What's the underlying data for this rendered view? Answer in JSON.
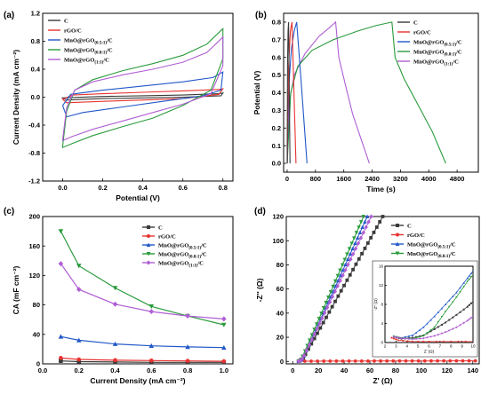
{
  "colors": {
    "C": "#3a3a3a",
    "rGO": "#e8322f",
    "MnO051": "#2158c8",
    "MnO081": "#2a9b3c",
    "MnO11": "#b05ed4"
  },
  "legend": [
    {
      "key": "C",
      "base": "C",
      "sub": "",
      "tail": ""
    },
    {
      "key": "rGO",
      "base": "rGO/C",
      "sub": "",
      "tail": ""
    },
    {
      "key": "MnO051",
      "base": "MnO@rGO",
      "sub": "(0.5:1)",
      "tail": "/C"
    },
    {
      "key": "MnO081",
      "base": "MnO@rGO",
      "sub": "(0.8:1)",
      "tail": "/C"
    },
    {
      "key": "MnO11",
      "base": "MnO@rGO",
      "sub": "(1:1)",
      "tail": "/C"
    }
  ],
  "chart_data": [
    {
      "id": "a",
      "panel_label": "(a)",
      "type": "line",
      "xlabel": "Potential (V)",
      "ylabel": "Current Density (mA cm⁻²)",
      "xlim": [
        -0.1,
        0.85
      ],
      "ylim": [
        -1.2,
        1.2
      ],
      "xticks": [
        "0.0",
        "0.2",
        "0.4",
        "0.6",
        "0.8"
      ],
      "yticks": [
        "-1.2",
        "-0.8",
        "-0.4",
        "0.0",
        "0.4",
        "0.8",
        "1.2"
      ],
      "legend_position": "top-left",
      "series": [
        {
          "key": "C",
          "loops": [
            [
              0,
              -0.01
            ],
            [
              0.2,
              0.01
            ],
            [
              0.4,
              0.02
            ],
            [
              0.6,
              0.03
            ],
            [
              0.78,
              0.05
            ],
            [
              0.8,
              0.06
            ],
            [
              0.79,
              0.02
            ],
            [
              0.6,
              0.0
            ],
            [
              0.4,
              -0.01
            ],
            [
              0.2,
              -0.02
            ],
            [
              0.02,
              -0.04
            ],
            [
              0,
              -0.01
            ]
          ]
        },
        {
          "key": "rGO",
          "loops": [
            [
              0,
              -0.03
            ],
            [
              0.05,
              0.03
            ],
            [
              0.2,
              0.05
            ],
            [
              0.4,
              0.07
            ],
            [
              0.6,
              0.09
            ],
            [
              0.78,
              0.11
            ],
            [
              0.8,
              0.12
            ],
            [
              0.78,
              0.04
            ],
            [
              0.6,
              -0.02
            ],
            [
              0.4,
              -0.04
            ],
            [
              0.2,
              -0.06
            ],
            [
              0.02,
              -0.08
            ],
            [
              0,
              -0.03
            ]
          ]
        },
        {
          "key": "MnO051",
          "loops": [
            [
              0,
              -0.12
            ],
            [
              0.04,
              0.04
            ],
            [
              0.2,
              0.1
            ],
            [
              0.4,
              0.16
            ],
            [
              0.6,
              0.22
            ],
            [
              0.75,
              0.28
            ],
            [
              0.8,
              0.36
            ],
            [
              0.79,
              0.1
            ],
            [
              0.7,
              0.02
            ],
            [
              0.5,
              -0.06
            ],
            [
              0.3,
              -0.14
            ],
            [
              0.1,
              -0.22
            ],
            [
              0.02,
              -0.28
            ],
            [
              0,
              -0.12
            ]
          ]
        },
        {
          "key": "MnO081",
          "loops": [
            [
              0,
              -0.7
            ],
            [
              0.02,
              -0.2
            ],
            [
              0.06,
              0.1
            ],
            [
              0.15,
              0.25
            ],
            [
              0.3,
              0.38
            ],
            [
              0.45,
              0.48
            ],
            [
              0.6,
              0.6
            ],
            [
              0.72,
              0.76
            ],
            [
              0.8,
              0.98
            ],
            [
              0.8,
              0.55
            ],
            [
              0.74,
              0.1
            ],
            [
              0.6,
              -0.12
            ],
            [
              0.45,
              -0.3
            ],
            [
              0.3,
              -0.42
            ],
            [
              0.15,
              -0.55
            ],
            [
              0.05,
              -0.66
            ],
            [
              0,
              -0.72
            ]
          ]
        },
        {
          "key": "MnO11",
          "loops": [
            [
              0,
              -0.6
            ],
            [
              0.02,
              -0.15
            ],
            [
              0.06,
              0.1
            ],
            [
              0.15,
              0.22
            ],
            [
              0.3,
              0.32
            ],
            [
              0.45,
              0.4
            ],
            [
              0.6,
              0.5
            ],
            [
              0.72,
              0.64
            ],
            [
              0.8,
              0.86
            ],
            [
              0.8,
              0.45
            ],
            [
              0.74,
              0.05
            ],
            [
              0.6,
              -0.1
            ],
            [
              0.45,
              -0.22
            ],
            [
              0.3,
              -0.34
            ],
            [
              0.15,
              -0.46
            ],
            [
              0.05,
              -0.56
            ],
            [
              0,
              -0.62
            ]
          ]
        }
      ]
    },
    {
      "id": "b",
      "panel_label": "(b)",
      "type": "line",
      "xlabel": "Time (s)",
      "ylabel": "Potential (V)",
      "xlim": [
        -100,
        5400
      ],
      "ylim": [
        -0.05,
        0.85
      ],
      "xticks": [
        "0",
        "800",
        "1600",
        "2400",
        "3200",
        "4000",
        "4800"
      ],
      "yticks": [
        "0.0",
        "0.1",
        "0.2",
        "0.3",
        "0.4",
        "0.5",
        "0.6",
        "0.7",
        "0.8"
      ],
      "legend_position": "top-right",
      "series": [
        {
          "key": "C",
          "points": [
            [
              0,
              0
            ],
            [
              10,
              0.55
            ],
            [
              25,
              0.75
            ],
            [
              40,
              0.8
            ],
            [
              80,
              0.0
            ]
          ]
        },
        {
          "key": "rGO",
          "points": [
            [
              0,
              0
            ],
            [
              40,
              0.55
            ],
            [
              90,
              0.75
            ],
            [
              135,
              0.8
            ],
            [
              250,
              0.0
            ]
          ]
        },
        {
          "key": "MnO051",
          "points": [
            [
              0,
              0
            ],
            [
              50,
              0.45
            ],
            [
              120,
              0.65
            ],
            [
              200,
              0.75
            ],
            [
              270,
              0.8
            ],
            [
              400,
              0.45
            ],
            [
              560,
              0.0
            ]
          ]
        },
        {
          "key": "MnO081",
          "points": [
            [
              0,
              0
            ],
            [
              100,
              0.4
            ],
            [
              300,
              0.55
            ],
            [
              700,
              0.64
            ],
            [
              1300,
              0.7
            ],
            [
              2000,
              0.75
            ],
            [
              2500,
              0.78
            ],
            [
              2960,
              0.8
            ],
            [
              3050,
              0.6
            ],
            [
              3300,
              0.48
            ],
            [
              3700,
              0.33
            ],
            [
              4100,
              0.18
            ],
            [
              4480,
              0.0
            ]
          ]
        },
        {
          "key": "MnO11",
          "points": [
            [
              0,
              0
            ],
            [
              60,
              0.35
            ],
            [
              200,
              0.5
            ],
            [
              500,
              0.62
            ],
            [
              900,
              0.72
            ],
            [
              1200,
              0.77
            ],
            [
              1370,
              0.8
            ],
            [
              1460,
              0.6
            ],
            [
              1650,
              0.44
            ],
            [
              1850,
              0.28
            ],
            [
              2100,
              0.13
            ],
            [
              2320,
              0.0
            ]
          ]
        }
      ]
    },
    {
      "id": "c",
      "panel_label": "(c)",
      "type": "line",
      "xlabel": "Current Density (mA cm⁻²)",
      "ylabel": "CA (mF cm⁻²)",
      "xlim": [
        0.0,
        1.05
      ],
      "ylim": [
        0,
        200
      ],
      "xticks": [
        "0.0",
        "0.2",
        "0.4",
        "0.6",
        "0.8",
        "1.0"
      ],
      "yticks": [
        "0",
        "40",
        "80",
        "120",
        "160",
        "200"
      ],
      "legend_position": "top-right",
      "x": [
        0.1,
        0.2,
        0.4,
        0.6,
        0.8,
        1.0
      ],
      "series": [
        {
          "key": "C",
          "marker": "square",
          "values": [
            4,
            3,
            2.5,
            2,
            2,
            2
          ]
        },
        {
          "key": "rGO",
          "marker": "circle",
          "values": [
            8,
            6,
            5,
            4.5,
            4,
            3.5
          ]
        },
        {
          "key": "MnO051",
          "marker": "triangle-up",
          "values": [
            37,
            32,
            27,
            24.5,
            23,
            22
          ]
        },
        {
          "key": "MnO081",
          "marker": "triangle-down",
          "values": [
            180,
            133,
            103,
            78,
            65,
            53
          ]
        },
        {
          "key": "MnO11",
          "marker": "diamond",
          "values": [
            136,
            101,
            81,
            71,
            65,
            61
          ]
        }
      ]
    },
    {
      "id": "d",
      "panel_label": "(d)",
      "type": "scatter",
      "xlabel": "Z' (Ω)",
      "ylabel": "-Z'' (Ω)",
      "xlim": [
        -5,
        145
      ],
      "ylim": [
        -2,
        120
      ],
      "xticks": [
        "0",
        "20",
        "40",
        "60",
        "80",
        "100",
        "120",
        "140"
      ],
      "yticks": [
        "0",
        "20",
        "40",
        "60",
        "80",
        "100",
        "120"
      ],
      "legend_position": "top-right",
      "series": [
        {
          "key": "C",
          "marker": "square",
          "start": [
            4.5,
            0.3
          ],
          "end": [
            70,
            120
          ],
          "knee": [
            9,
            4
          ]
        },
        {
          "key": "rGO",
          "marker": "circle",
          "start": [
            4.5,
            0.2
          ],
          "end": [
            142,
            0.5
          ],
          "knee": null
        },
        {
          "key": "MnO051",
          "marker": "triangle-up",
          "start": [
            4.5,
            0.3
          ],
          "end": [
            58,
            120
          ],
          "knee": [
            8,
            3
          ]
        },
        {
          "key": "MnO081",
          "marker": "triangle-down",
          "start": [
            4.5,
            0.3
          ],
          "end": [
            55,
            120
          ],
          "knee": [
            7,
            2.5
          ]
        },
        {
          "key": "MnO11",
          "marker": "diamond",
          "start": [
            4.5,
            0.3
          ],
          "end": [
            61,
            120
          ],
          "knee": [
            8,
            3
          ]
        }
      ],
      "inset": {
        "xlabel": "Z' (Ω)",
        "ylabel": "-Z'' (Ω)",
        "xlim": [
          2,
          10
        ],
        "ylim": [
          0,
          16
        ],
        "xticks": [
          "2",
          "3",
          "4",
          "5",
          "6",
          "7",
          "8",
          "9",
          "10"
        ],
        "yticks": [
          "0",
          "4",
          "8",
          "12",
          "16"
        ],
        "series": [
          {
            "key": "C",
            "points": [
              [
                2.8,
                1.2
              ],
              [
                3.5,
                0.8
              ],
              [
                4.5,
                1.0
              ],
              [
                5.5,
                1.5
              ],
              [
                6.5,
                2.8
              ],
              [
                7.5,
                4.2
              ],
              [
                8.5,
                5.8
              ],
              [
                9.5,
                7.5
              ],
              [
                10,
                8.6
              ]
            ]
          },
          {
            "key": "rGO",
            "points": [
              [
                2.6,
                1.0
              ],
              [
                3.2,
                0.5
              ],
              [
                4.5,
                0.2
              ],
              [
                6,
                0.2
              ],
              [
                8,
                0.2
              ],
              [
                10,
                0.2
              ]
            ]
          },
          {
            "key": "MnO051",
            "points": [
              [
                2.8,
                1.3
              ],
              [
                3.5,
                1.0
              ],
              [
                4.5,
                1.5
              ],
              [
                5.5,
                3.2
              ],
              [
                6.5,
                5.5
              ],
              [
                7.5,
                8.0
              ],
              [
                8.5,
                10.5
              ],
              [
                9.5,
                13.5
              ],
              [
                10,
                15
              ]
            ]
          },
          {
            "key": "MnO081",
            "points": [
              [
                2.8,
                1.3
              ],
              [
                3.5,
                0.9
              ],
              [
                4.5,
                0.8
              ],
              [
                5.5,
                1.4
              ],
              [
                6.5,
                3.2
              ],
              [
                7.5,
                6.5
              ],
              [
                8.5,
                9.5
              ],
              [
                9.5,
                12.8
              ],
              [
                10,
                14.2
              ]
            ]
          },
          {
            "key": "MnO11",
            "points": [
              [
                2.8,
                1.2
              ],
              [
                3.5,
                0.9
              ],
              [
                4.5,
                0.7
              ],
              [
                5.5,
                0.9
              ],
              [
                6.5,
                1.4
              ],
              [
                7.5,
                2.2
              ],
              [
                8.5,
                3.2
              ],
              [
                9.5,
                4.6
              ],
              [
                10,
                5.5
              ]
            ]
          }
        ]
      }
    }
  ]
}
